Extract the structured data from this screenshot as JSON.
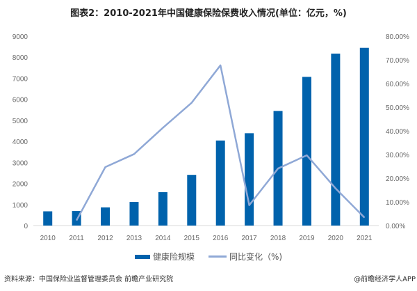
{
  "chart_data": {
    "type": "bar+line",
    "title": "图表2：2010-2021年中国健康保险保费收入情况(单位：亿元，%)",
    "categories": [
      "2010",
      "2011",
      "2012",
      "2013",
      "2014",
      "2015",
      "2016",
      "2017",
      "2018",
      "2019",
      "2020",
      "2021"
    ],
    "series": [
      {
        "name": "健康险规模",
        "type": "bar",
        "axis": "left",
        "color": "#0062AC",
        "values": [
          677,
          692,
          863,
          1123,
          1587,
          2410,
          4042,
          4389,
          5448,
          7066,
          8173,
          8447
        ]
      },
      {
        "name": "同比变化（%)",
        "type": "line",
        "axis": "right",
        "color": "#8FA8D6",
        "values": [
          null,
          2.2,
          24.7,
          30.2,
          41.3,
          51.9,
          67.7,
          8.6,
          24.1,
          29.7,
          15.7,
          3.4
        ]
      }
    ],
    "yleft": {
      "ylim": [
        0,
        9000
      ],
      "ticks": [
        "0",
        "1000",
        "2000",
        "3000",
        "4000",
        "5000",
        "6000",
        "7000",
        "8000",
        "9000"
      ]
    },
    "yright": {
      "ylim": [
        0,
        80
      ],
      "ticks": [
        "0.00%",
        "10.00%",
        "20.00%",
        "30.00%",
        "40.00%",
        "50.00%",
        "60.00%",
        "70.00%",
        "80.00%"
      ]
    },
    "legend": "bottom"
  },
  "footer": {
    "source": "资料来源：中国保险业监督管理委员会 前瞻产业研究院",
    "credit": "@前瞻经济学人APP"
  }
}
